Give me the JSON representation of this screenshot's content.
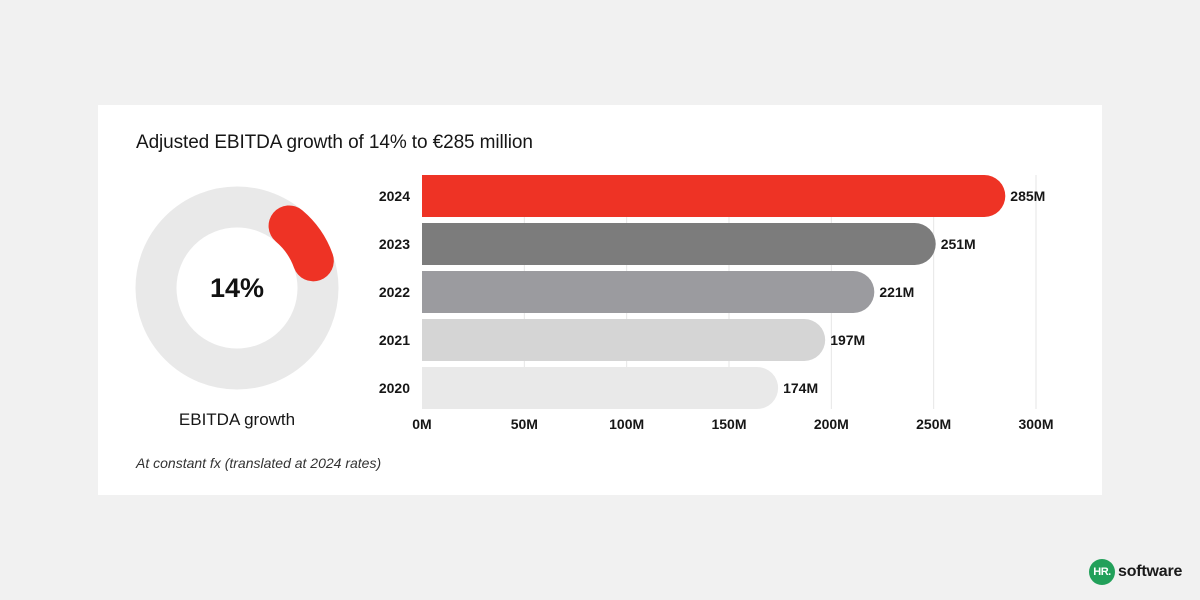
{
  "card": {
    "title": "Adjusted EBITDA growth of 14% to €285 million",
    "footnote": "At constant fx (translated at 2024 rates)"
  },
  "donut": {
    "value_label": "14%",
    "fraction": 0.14,
    "caption": "EBITDA growth",
    "colors": {
      "track": "#e9e9e9",
      "fill": "#ee3325"
    }
  },
  "chart_data": {
    "type": "bar",
    "orientation": "horizontal",
    "title": "Adjusted EBITDA growth of 14% to €285 million",
    "categories": [
      "2024",
      "2023",
      "2022",
      "2021",
      "2020"
    ],
    "values": [
      285,
      251,
      221,
      197,
      174
    ],
    "value_labels": [
      "285M",
      "251M",
      "221M",
      "197M",
      "174M"
    ],
    "bar_colors": [
      "#ee3325",
      "#7c7c7c",
      "#9b9b9f",
      "#d5d5d5",
      "#e9e9e9"
    ],
    "xlim": [
      0,
      300
    ],
    "x_ticks": [
      0,
      50,
      100,
      150,
      200,
      250,
      300
    ],
    "x_tick_labels": [
      "0M",
      "50M",
      "100M",
      "150M",
      "200M",
      "250M",
      "300M"
    ],
    "grid": true,
    "unit": "M"
  },
  "brand": {
    "badge": "HR.",
    "name": "software"
  }
}
